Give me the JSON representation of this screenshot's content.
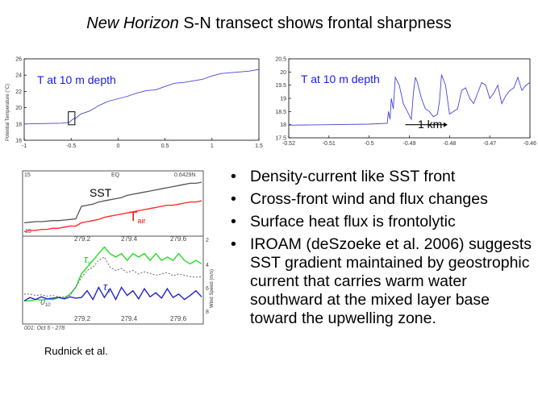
{
  "title": {
    "italic": "New Horizon",
    "rest": " S-N transect shows frontal sharpness"
  },
  "chart_data": [
    {
      "type": "line",
      "annotation": "T at 10 m depth",
      "ylabel": "Potential Temperature (°C)",
      "xlim": [
        -1,
        1.5
      ],
      "ylim": [
        16,
        26
      ],
      "xticks": [
        "-1",
        "-0.5",
        "0",
        "0.5",
        "1",
        "1.5"
      ],
      "yticks": [
        "16",
        "18",
        "20",
        "22",
        "24",
        "26"
      ],
      "series": [
        {
          "color": "#4545d8",
          "x": [
            -1,
            -0.8,
            -0.6,
            -0.52,
            -0.48,
            -0.45,
            -0.4,
            -0.3,
            -0.2,
            -0.1,
            0,
            0.1,
            0.2,
            0.3,
            0.4,
            0.5,
            0.6,
            0.7,
            0.8,
            0.9,
            1.0,
            1.1,
            1.2,
            1.3,
            1.4,
            1.5
          ],
          "y": [
            18,
            18.05,
            18.1,
            18.2,
            18.6,
            18.7,
            19.2,
            19.6,
            20.3,
            20.8,
            21.1,
            21.4,
            21.8,
            22.1,
            22.2,
            22.6,
            23.0,
            23.1,
            23.3,
            23.5,
            23.9,
            24.2,
            24.3,
            24.4,
            24.5,
            24.7
          ]
        }
      ]
    },
    {
      "type": "line",
      "annotation": "T at 10 m depth",
      "scale_label": "1 km",
      "xlim": [
        -0.52,
        -0.46
      ],
      "ylim": [
        17.5,
        20.5
      ],
      "xticks": [
        "-0.52",
        "-0.51",
        "-0.5",
        "-0.49",
        "-0.48",
        "-0.47",
        "-0.46"
      ],
      "yticks": [
        "17.5",
        "18",
        "18.5",
        "19",
        "19.5",
        "20",
        "20.5"
      ],
      "series": [
        {
          "color": "#4545d8",
          "x": [
            -0.52,
            -0.51,
            -0.5,
            -0.4955,
            -0.4952,
            -0.4948,
            -0.4945,
            -0.494,
            -0.4935,
            -0.4925,
            -0.4915,
            -0.4905,
            -0.4895,
            -0.489,
            -0.4885,
            -0.488,
            -0.487,
            -0.486,
            -0.485,
            -0.484,
            -0.483,
            -0.4825,
            -0.482,
            -0.481,
            -0.48,
            -0.479,
            -0.478,
            -0.477,
            -0.476,
            -0.475,
            -0.474,
            -0.473,
            -0.472,
            -0.471,
            -0.47,
            -0.469,
            -0.468,
            -0.467,
            -0.466,
            -0.465,
            -0.464,
            -0.463,
            -0.462,
            -0.461,
            -0.46
          ],
          "y": [
            17.98,
            18.0,
            18.02,
            18.05,
            18.5,
            18.2,
            19.0,
            18.6,
            19.8,
            19.5,
            18.8,
            18.5,
            18.2,
            19.2,
            19.8,
            19.6,
            19.0,
            18.6,
            18.5,
            18.3,
            18.4,
            18.9,
            19.9,
            19.5,
            18.4,
            18.5,
            18.6,
            19.3,
            19.4,
            19.0,
            18.8,
            19.2,
            19.6,
            19.5,
            19.0,
            19.2,
            19.5,
            18.8,
            19.1,
            19.3,
            19.4,
            19.8,
            19.3,
            19.5,
            19.6
          ]
        }
      ]
    },
    {
      "type": "line",
      "panel": "upper",
      "corner_labels": [
        "15",
        "EQ",
        "0.6429N"
      ],
      "bottom_left": "15",
      "xticks": [
        "279.2",
        "279.4",
        "279.6"
      ],
      "series": [
        {
          "name": "SST",
          "color": "#555555",
          "values": [
            0,
            0.5,
            1,
            1,
            1.5,
            2,
            2,
            2.5,
            3,
            3.5,
            15,
            16,
            17,
            19,
            20,
            21,
            22,
            23,
            25,
            26,
            27,
            28,
            29,
            30,
            31,
            32,
            33,
            34,
            35,
            36,
            36,
            37
          ]
        },
        {
          "name": "Tair",
          "color": "#ff2020",
          "values": [
            -8,
            -7,
            -7,
            -6,
            -6,
            -5,
            -5,
            -4,
            -3,
            -3,
            0,
            1,
            2,
            3,
            5,
            6,
            7,
            8,
            9,
            10,
            11,
            12,
            13,
            14,
            15,
            16,
            16,
            17,
            18,
            19,
            19,
            20
          ]
        }
      ]
    },
    {
      "type": "line",
      "panel": "lower",
      "right_axis_label": "Wind Speed (m/s)",
      "right_ticks": [
        "2",
        "4",
        "6",
        "8"
      ],
      "xticks": [
        "279.2",
        "279.4",
        "279.6"
      ],
      "footer": "001: Oct 5 - 278",
      "series": [
        {
          "name": "τy",
          "color": "#22dd22",
          "values": [
            2,
            2,
            2.2,
            2.1,
            2.3,
            2.2,
            2.5,
            2.4,
            3,
            4,
            6,
            7,
            8,
            9,
            10,
            9,
            8.5,
            9,
            8,
            9,
            8.5,
            9,
            8,
            9,
            8,
            8.5,
            8,
            9,
            8,
            7.5,
            8,
            7.5
          ]
        },
        {
          "name": "τx",
          "color": "#2222cc",
          "values": [
            2,
            2.5,
            2.2,
            2.6,
            2.3,
            2.4,
            2.5,
            2.3,
            2.6,
            2.4,
            2.5,
            3.5,
            2.2,
            4,
            2.5,
            3.8,
            2.2,
            4,
            2.8,
            3.5,
            2.3,
            3.8,
            2.6,
            3.2,
            2.4,
            3.8,
            2.5,
            3,
            2.2,
            2.8,
            3.5,
            2.6
          ]
        },
        {
          "name": "U10",
          "color": "#666666",
          "values": [
            3,
            3,
            2.8,
            2.9,
            2.7,
            2.8,
            2.6,
            2.6,
            2.8,
            4,
            5.5,
            6.5,
            7,
            8,
            8.5,
            7,
            6.5,
            6.8,
            6.2,
            6.5,
            6,
            6.3,
            6.1,
            5.8,
            6,
            6.2,
            5.7,
            6,
            5.8,
            5.6,
            5.5,
            5.6
          ]
        }
      ]
    }
  ],
  "bullets": [
    "Density-current like SST front",
    "Cross-front wind and flux changes",
    "Surface heat flux is frontolytic",
    "IROAM (deSzoeke et al. 2006) suggests SST gradient maintained by geostrophic current that carries warm water southward at the mixed layer base toward the upwelling zone."
  ],
  "credit": "Rudnick et al."
}
